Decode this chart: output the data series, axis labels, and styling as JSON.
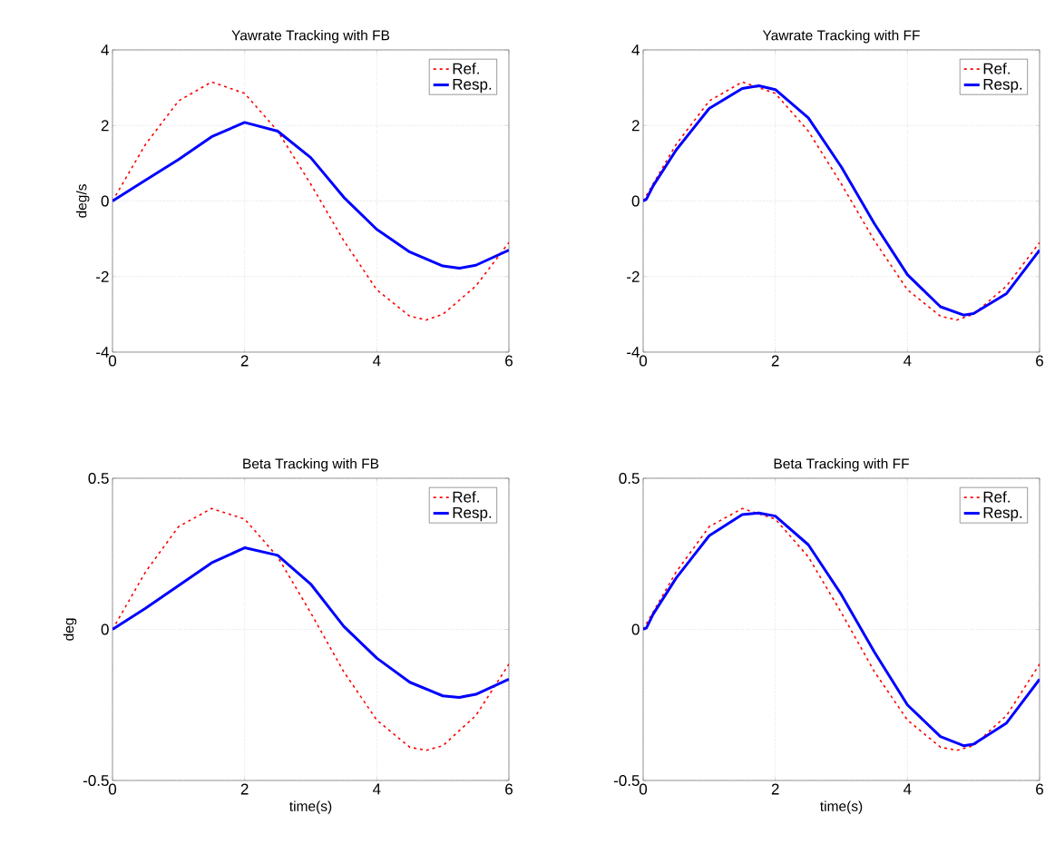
{
  "chart_data": [
    {
      "type": "line",
      "title": "Yawrate Tracking with FB",
      "ylabel": "deg/s",
      "xlim": [
        0,
        6
      ],
      "xticks": [
        0,
        2,
        4,
        6
      ],
      "ylim": [
        -4,
        4
      ],
      "yticks": [
        -4,
        -2,
        0,
        2,
        4
      ],
      "grid": true,
      "legend": "top right",
      "series": [
        {
          "name": "Ref.",
          "color": "#ff0000",
          "line_style": "dashed",
          "x": [
            0,
            0.5,
            1,
            1.5,
            2,
            2.5,
            3,
            3.5,
            4,
            4.5,
            4.75,
            5,
            5.5,
            6
          ],
          "values": [
            0,
            1.5,
            2.65,
            3.15,
            2.85,
            1.85,
            0.45,
            -1.05,
            -2.35,
            -3.05,
            -3.15,
            -3.0,
            -2.25,
            -1.1
          ]
        },
        {
          "name": "Resp.",
          "color": "#0000ff",
          "line_style": "solid",
          "x": [
            0,
            0.5,
            1,
            1.5,
            2,
            2.5,
            3,
            3.5,
            4,
            4.5,
            5,
            5.25,
            5.5,
            6
          ],
          "values": [
            0,
            0.55,
            1.1,
            1.7,
            2.08,
            1.85,
            1.15,
            0.1,
            -0.75,
            -1.35,
            -1.72,
            -1.78,
            -1.7,
            -1.3
          ]
        }
      ]
    },
    {
      "type": "line",
      "title": "Yawrate Tracking with FF",
      "xlim": [
        0,
        6
      ],
      "xticks": [
        0,
        2,
        4,
        6
      ],
      "ylim": [
        -4,
        4
      ],
      "yticks": [
        -4,
        -2,
        0,
        2,
        4
      ],
      "grid": true,
      "legend": "top right",
      "series": [
        {
          "name": "Ref.",
          "color": "#ff0000",
          "line_style": "dashed",
          "x": [
            0,
            0.5,
            1,
            1.5,
            2,
            2.5,
            3,
            3.5,
            4,
            4.5,
            4.75,
            5,
            5.5,
            6
          ],
          "values": [
            0,
            1.5,
            2.65,
            3.15,
            2.85,
            1.85,
            0.45,
            -1.05,
            -2.35,
            -3.05,
            -3.15,
            -3.0,
            -2.25,
            -1.1
          ]
        },
        {
          "name": "Resp.",
          "color": "#0000ff",
          "line_style": "solid",
          "x": [
            0,
            0.05,
            0.15,
            0.5,
            1,
            1.5,
            1.75,
            2,
            2.5,
            3,
            3.5,
            4,
            4.5,
            4.85,
            5,
            5.5,
            6
          ],
          "values": [
            0,
            0.05,
            0.4,
            1.35,
            2.45,
            2.98,
            3.05,
            2.95,
            2.2,
            0.9,
            -0.6,
            -1.95,
            -2.8,
            -3.02,
            -2.98,
            -2.45,
            -1.3
          ]
        }
      ]
    },
    {
      "type": "line",
      "title": "Beta Tracking with FB",
      "xlabel": "time(s)",
      "ylabel": "deg",
      "xlim": [
        0,
        6
      ],
      "xticks": [
        0,
        2,
        4,
        6
      ],
      "ylim": [
        -0.5,
        0.5
      ],
      "yticks": [
        -0.5,
        0,
        0.5
      ],
      "grid": true,
      "legend": "top right",
      "series": [
        {
          "name": "Ref.",
          "color": "#ff0000",
          "line_style": "dashed",
          "x": [
            0,
            0.5,
            1,
            1.5,
            2,
            2.5,
            3,
            3.5,
            4,
            4.5,
            4.75,
            5,
            5.5,
            6
          ],
          "values": [
            0,
            0.19,
            0.34,
            0.4,
            0.365,
            0.24,
            0.055,
            -0.14,
            -0.3,
            -0.39,
            -0.4,
            -0.385,
            -0.285,
            -0.115
          ]
        },
        {
          "name": "Resp.",
          "color": "#0000ff",
          "line_style": "solid",
          "x": [
            0,
            0.5,
            1,
            1.5,
            2,
            2.5,
            3,
            3.5,
            4,
            4.5,
            5,
            5.25,
            5.5,
            6
          ],
          "values": [
            0,
            0.07,
            0.145,
            0.22,
            0.27,
            0.245,
            0.15,
            0.01,
            -0.095,
            -0.175,
            -0.22,
            -0.225,
            -0.215,
            -0.165
          ]
        }
      ]
    },
    {
      "type": "line",
      "title": "Beta Tracking with FF",
      "xlabel": "time(s)",
      "xlim": [
        0,
        6
      ],
      "xticks": [
        0,
        2,
        4,
        6
      ],
      "ylim": [
        -0.5,
        0.5
      ],
      "yticks": [
        -0.5,
        0,
        0.5
      ],
      "grid": true,
      "legend": "top right",
      "series": [
        {
          "name": "Ref.",
          "color": "#ff0000",
          "line_style": "dashed",
          "x": [
            0,
            0.5,
            1,
            1.5,
            2,
            2.5,
            3,
            3.5,
            4,
            4.5,
            4.75,
            5,
            5.5,
            6
          ],
          "values": [
            0,
            0.19,
            0.34,
            0.4,
            0.365,
            0.24,
            0.055,
            -0.14,
            -0.3,
            -0.39,
            -0.4,
            -0.385,
            -0.285,
            -0.115
          ]
        },
        {
          "name": "Resp.",
          "color": "#0000ff",
          "line_style": "solid",
          "x": [
            0,
            0.05,
            0.15,
            0.5,
            1,
            1.5,
            1.75,
            2,
            2.5,
            3,
            3.5,
            4,
            4.5,
            4.85,
            5,
            5.5,
            6
          ],
          "values": [
            0,
            0.005,
            0.05,
            0.17,
            0.31,
            0.38,
            0.385,
            0.375,
            0.28,
            0.115,
            -0.075,
            -0.25,
            -0.355,
            -0.385,
            -0.38,
            -0.31,
            -0.165
          ]
        }
      ]
    }
  ]
}
